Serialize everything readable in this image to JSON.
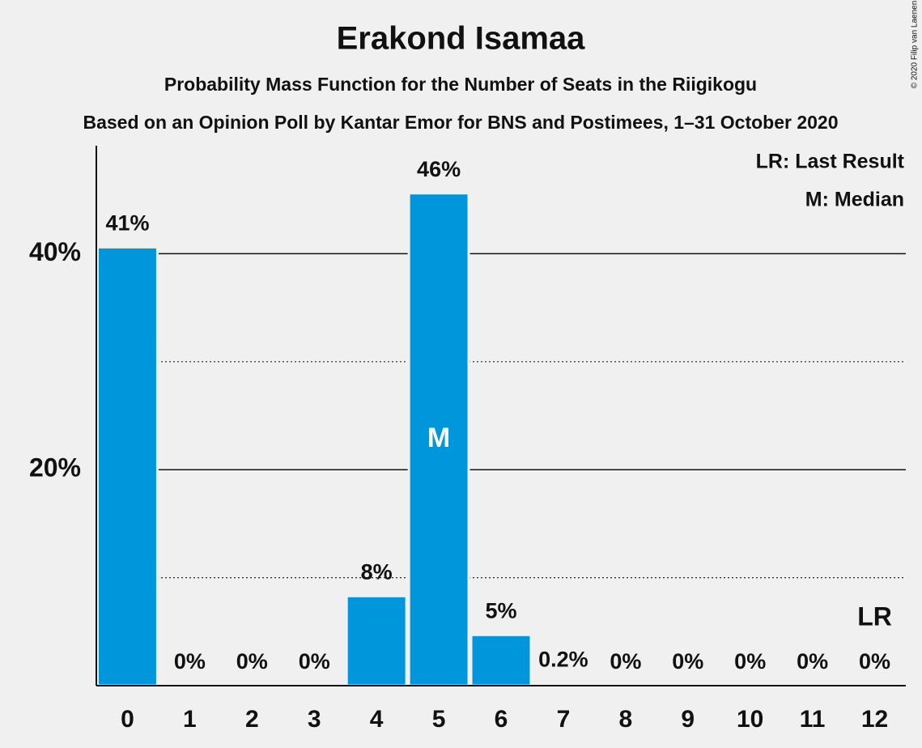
{
  "chart_data": {
    "type": "bar",
    "title": "Erakond Isamaa",
    "subtitle": "Probability Mass Function for the Number of Seats in the Riigikogu",
    "source_note": "Based on an Opinion Poll by Kantar Emor for BNS and Postimees, 1–31 October 2020",
    "copyright": "© 2020 Filip van Laenen",
    "legend_notes": [
      "LR: Last Result",
      "M: Median"
    ],
    "median": {
      "label": "M",
      "category": "5"
    },
    "last_result": {
      "label": "LR",
      "category": "12"
    },
    "categories": [
      "0",
      "1",
      "2",
      "3",
      "4",
      "5",
      "6",
      "7",
      "8",
      "9",
      "10",
      "11",
      "12"
    ],
    "values": [
      40.6,
      0,
      0,
      0,
      8.3,
      45.6,
      4.7,
      0.2,
      0,
      0,
      0,
      0,
      0
    ],
    "value_labels": [
      "41%",
      "0%",
      "0%",
      "0%",
      "8%",
      "46%",
      "5%",
      "0.2%",
      "0%",
      "0%",
      "0%",
      "0%",
      "0%"
    ],
    "color": "#0096db",
    "ylim": [
      0,
      50
    ],
    "yticks": [
      {
        "value": 20,
        "label": "20%"
      },
      {
        "value": 40,
        "label": "40%"
      }
    ],
    "minor_yticks": [
      10,
      30
    ],
    "grid": true
  }
}
